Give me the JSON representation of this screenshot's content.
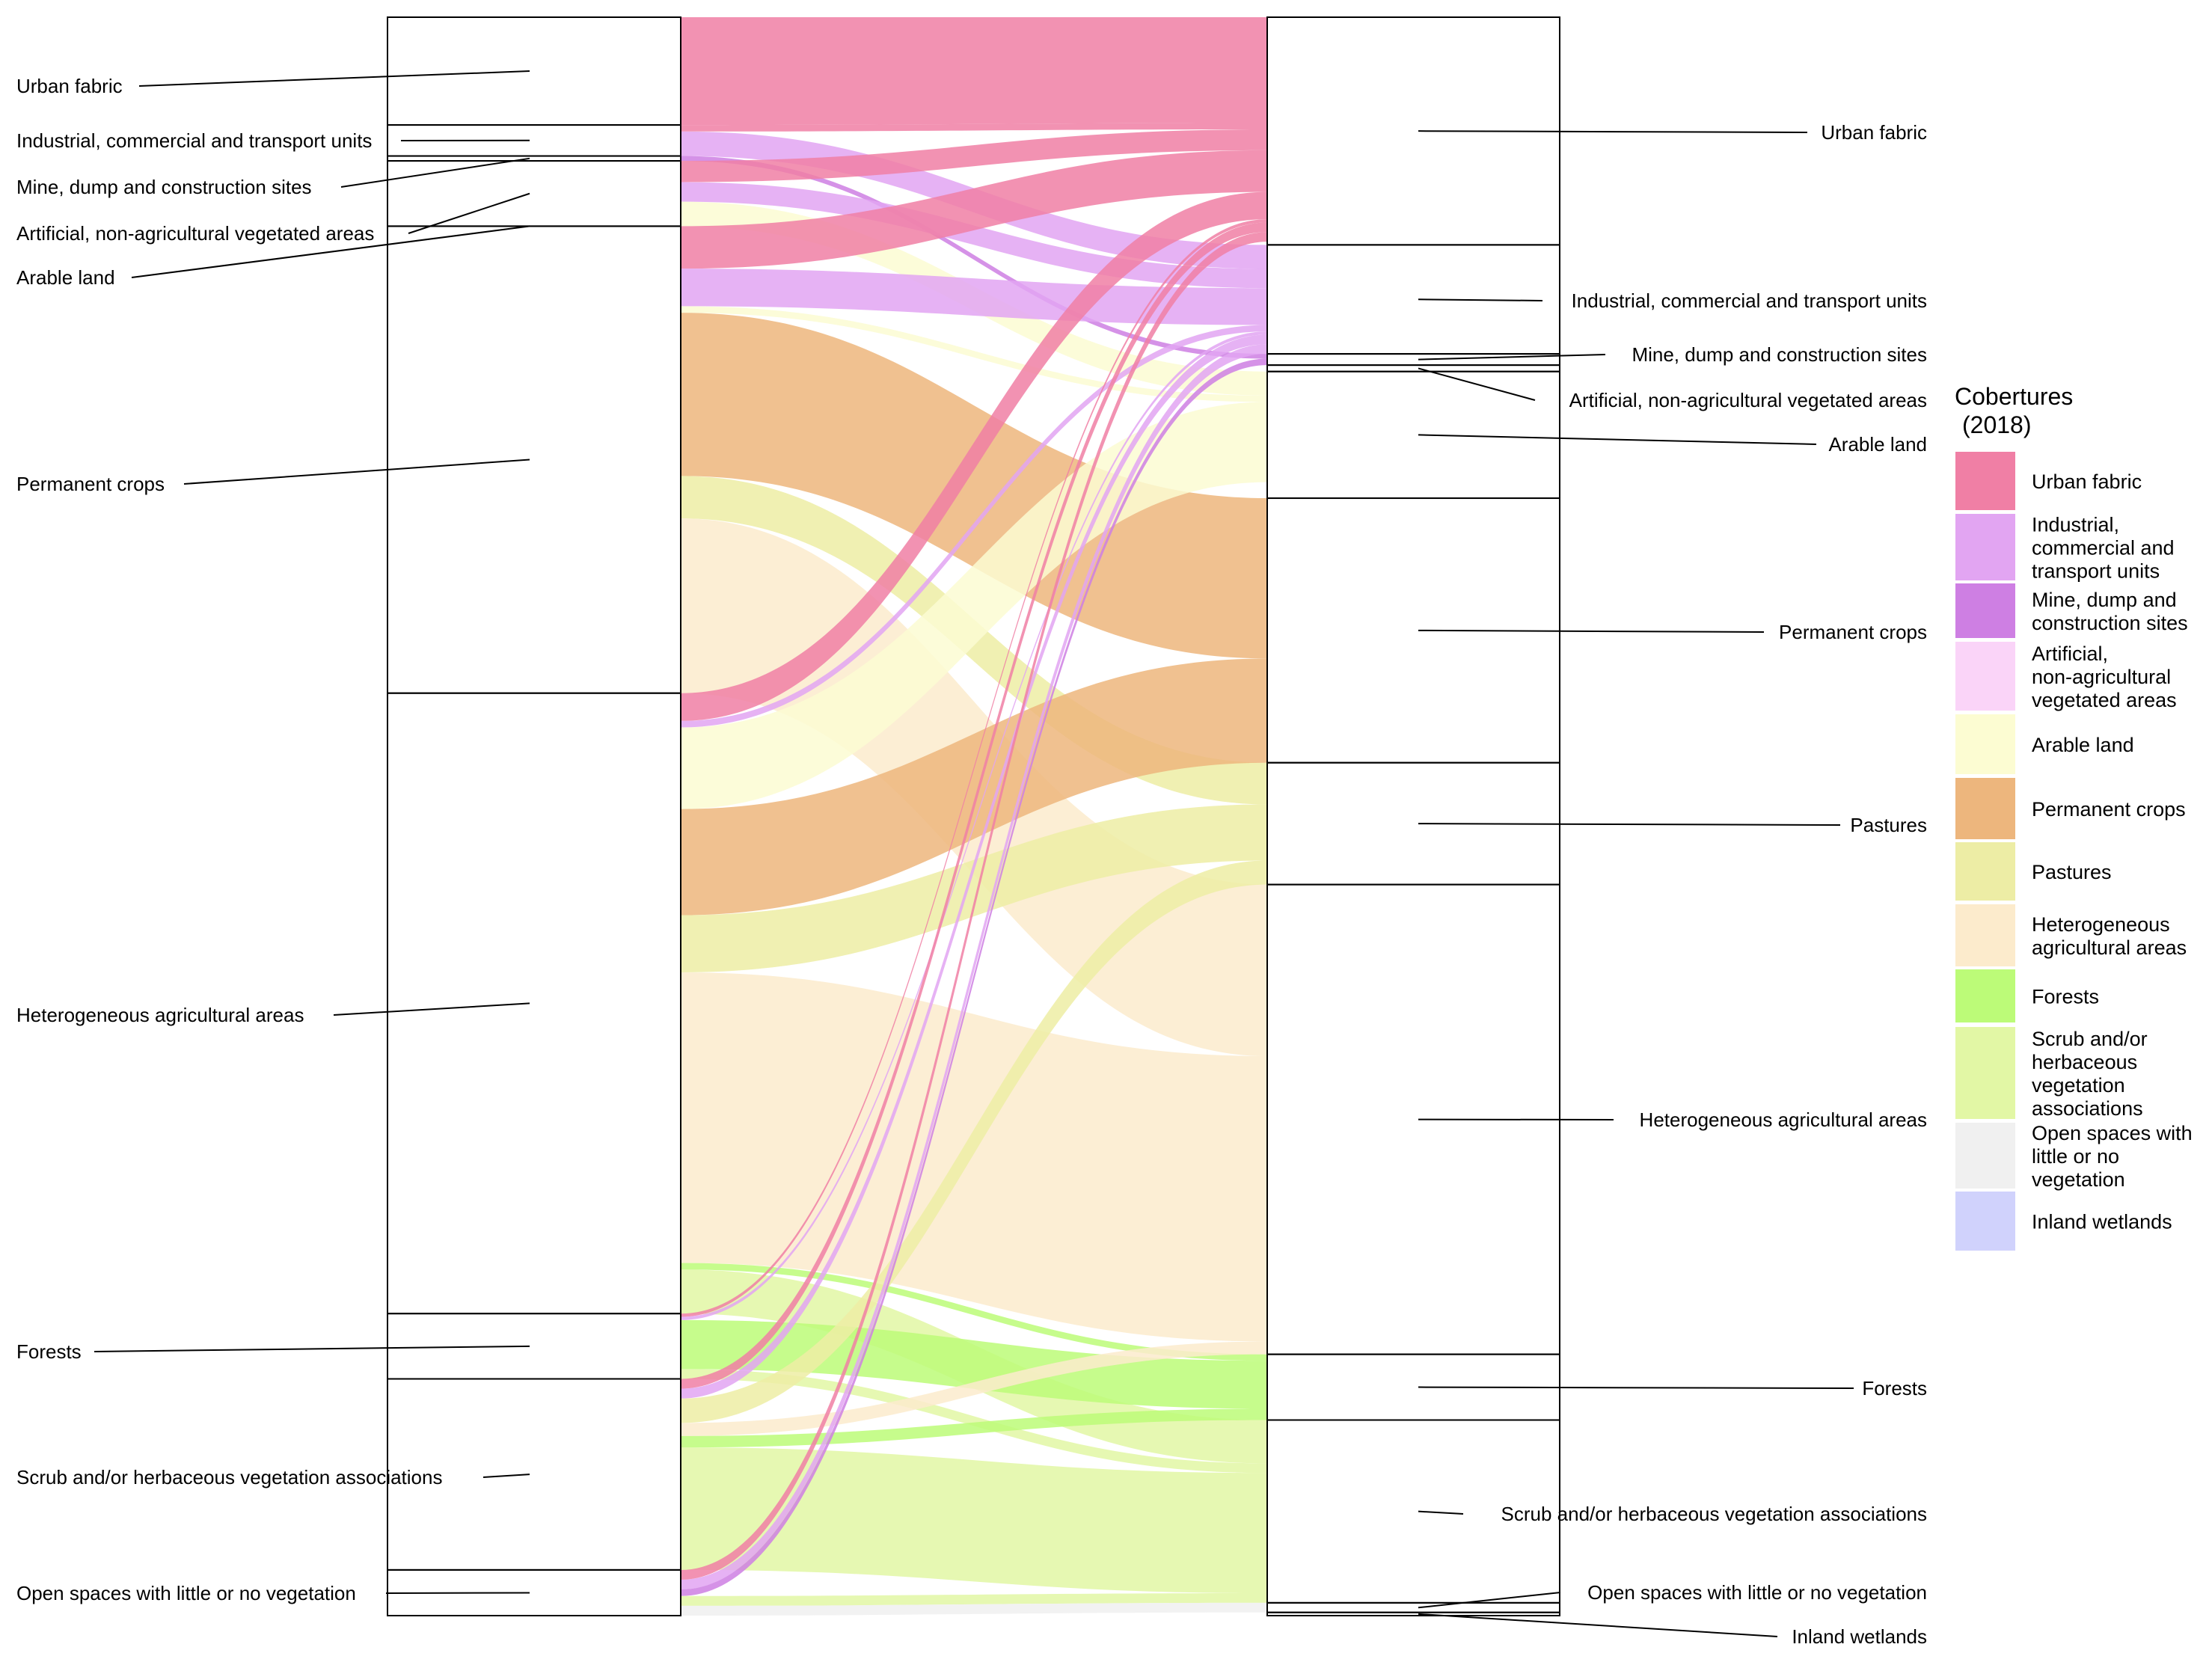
{
  "chart_data": {
    "type": "alluvial",
    "legend": {
      "title_line1": "Cobertures",
      "title_line2": "(2018)",
      "placement": "right",
      "entries": [
        {
          "lines": [
            "Urban fabric"
          ],
          "color": "#F07FA5"
        },
        {
          "lines": [
            "Industrial,",
            "commercial and",
            "transport units"
          ],
          "color": "#E2A5F2"
        },
        {
          "lines": [
            "Mine, dump and",
            "construction sites"
          ],
          "color": "#CE7FE3"
        },
        {
          "lines": [
            "Artificial,",
            "non-agricultural",
            "vegetated areas"
          ],
          "color": "#FAD4F8"
        },
        {
          "lines": [
            "Arable land"
          ],
          "color": "#FCFCD2"
        },
        {
          "lines": [
            "Permanent crops"
          ],
          "color": "#EDB67D"
        },
        {
          "lines": [
            "Pastures"
          ],
          "color": "#EDEDA5"
        },
        {
          "lines": [
            "Heterogeneous",
            "agricultural areas"
          ],
          "color": "#FCEBCC"
        },
        {
          "lines": [
            "Forests"
          ],
          "color": "#BCFB78"
        },
        {
          "lines": [
            "Scrub and/or",
            "herbaceous",
            "vegetation",
            "associations"
          ],
          "color": "#E2F7A5"
        },
        {
          "lines": [
            "Open spaces with",
            "little or no",
            "vegetation"
          ],
          "color": "#F0F0F0"
        },
        {
          "lines": [
            "Inland wetlands"
          ],
          "color": "#D0D2FC"
        }
      ]
    },
    "left_axis": {
      "categories": [
        {
          "label": "Urban fabric",
          "share": 6.6
        },
        {
          "label": "Industrial, commercial and transport units",
          "share": 1.9
        },
        {
          "label": "Mine, dump and construction sites",
          "share": 0.3
        },
        {
          "label": "Artificial, non-agricultural vegetated areas",
          "share": 4.0
        },
        {
          "label": "Arable land",
          "share": 0.0
        },
        {
          "label": "Permanent crops",
          "share": 28.6
        },
        {
          "label": "Heterogeneous agricultural areas",
          "share": 38.0
        },
        {
          "label": "Forests",
          "share": 4.0
        },
        {
          "label": "Scrub and/or herbaceous vegetation associations",
          "share": 11.7
        },
        {
          "label": "Open spaces with little or no vegetation",
          "share": 2.8
        }
      ]
    },
    "right_axis": {
      "categories": [
        {
          "label": "Urban fabric",
          "share": 14.2
        },
        {
          "label": "Industrial, commercial and transport units",
          "share": 6.8
        },
        {
          "label": "Mine, dump and construction sites",
          "share": 0.7
        },
        {
          "label": "Artificial, non-agricultural vegetated areas",
          "share": 0.4
        },
        {
          "label": "Arable land",
          "share": 7.9
        },
        {
          "label": "Permanent crops",
          "share": 16.5
        },
        {
          "label": "Pastures",
          "share": 7.6
        },
        {
          "label": "Heterogeneous agricultural areas",
          "share": 29.3
        },
        {
          "label": "Forests",
          "share": 4.1
        },
        {
          "label": "Scrub and/or herbaceous vegetation associations",
          "share": 11.4
        },
        {
          "label": "Open spaces with little or no vegetation",
          "share": 0.6
        },
        {
          "label": "Inland wetlands",
          "share": 0.2
        }
      ]
    },
    "flows": [
      {
        "from": "Urban fabric",
        "to": "Urban fabric",
        "value": 6.6
      },
      {
        "from": "Industrial, commercial and transport units",
        "to": "Industrial, commercial and transport units",
        "value": 1.5
      },
      {
        "from": "Industrial, commercial and transport units",
        "to": "Urban fabric",
        "value": 0.4
      },
      {
        "from": "Mine, dump and construction sites",
        "to": "Mine, dump and construction sites",
        "value": 0.3
      },
      {
        "from": "Artificial, non-agricultural vegetated areas",
        "to": "Urban fabric",
        "value": 1.3
      },
      {
        "from": "Artificial, non-agricultural vegetated areas",
        "to": "Industrial, commercial and transport units",
        "value": 1.2
      },
      {
        "from": "Artificial, non-agricultural vegetated areas",
        "to": "Arable land",
        "value": 1.5
      },
      {
        "from": "Permanent crops",
        "to": "Arable land",
        "value": 0.4
      },
      {
        "from": "Permanent crops",
        "to": "Permanent crops",
        "value": 10.0
      },
      {
        "from": "Permanent crops",
        "to": "Pastures",
        "value": 2.6
      },
      {
        "from": "Permanent crops",
        "to": "Heterogeneous agricultural areas",
        "value": 10.7
      },
      {
        "from": "Permanent crops",
        "to": "Urban fabric",
        "value": 2.6
      },
      {
        "from": "Permanent crops",
        "to": "Industrial, commercial and transport units",
        "value": 2.3
      },
      {
        "from": "Heterogeneous agricultural areas",
        "to": "Arable land",
        "value": 5.0
      },
      {
        "from": "Heterogeneous agricultural areas",
        "to": "Permanent crops",
        "value": 6.5
      },
      {
        "from": "Heterogeneous agricultural areas",
        "to": "Pastures",
        "value": 3.5
      },
      {
        "from": "Heterogeneous agricultural areas",
        "to": "Heterogeneous agricultural areas",
        "value": 17.8
      },
      {
        "from": "Heterogeneous agricultural areas",
        "to": "Scrub and/or herbaceous vegetation associations",
        "value": 2.7
      },
      {
        "from": "Heterogeneous agricultural areas",
        "to": "Forests",
        "value": 0.4
      },
      {
        "from": "Heterogeneous agricultural areas",
        "to": "Urban fabric",
        "value": 1.7
      },
      {
        "from": "Heterogeneous agricultural areas",
        "to": "Industrial, commercial and transport units",
        "value": 0.4
      },
      {
        "from": "Forests",
        "to": "Forests",
        "value": 3.0
      },
      {
        "from": "Forests",
        "to": "Scrub and/or herbaceous vegetation associations",
        "value": 0.6
      },
      {
        "from": "Forests",
        "to": "Urban fabric",
        "value": 0.2
      },
      {
        "from": "Forests",
        "to": "Industrial, commercial and transport units",
        "value": 0.2
      },
      {
        "from": "Scrub and/or herbaceous vegetation associations",
        "to": "Scrub and/or herbaceous vegetation associations",
        "value": 7.5
      },
      {
        "from": "Scrub and/or herbaceous vegetation associations",
        "to": "Heterogeneous agricultural areas",
        "value": 0.8
      },
      {
        "from": "Scrub and/or herbaceous vegetation associations",
        "to": "Forests",
        "value": 0.7
      },
      {
        "from": "Scrub and/or herbaceous vegetation associations",
        "to": "Pastures",
        "value": 1.5
      },
      {
        "from": "Scrub and/or herbaceous vegetation associations",
        "to": "Urban fabric",
        "value": 0.6
      },
      {
        "from": "Scrub and/or herbaceous vegetation associations",
        "to": "Industrial, commercial and transport units",
        "value": 0.6
      },
      {
        "from": "Open spaces with little or no vegetation",
        "to": "Scrub and/or herbaceous vegetation associations",
        "value": 0.6
      },
      {
        "from": "Open spaces with little or no vegetation",
        "to": "Open spaces with little or no vegetation",
        "value": 0.6
      },
      {
        "from": "Open spaces with little or no vegetation",
        "to": "Industrial, commercial and transport units",
        "value": 0.6
      },
      {
        "from": "Open spaces with little or no vegetation",
        "to": "Urban fabric",
        "value": 0.6
      },
      {
        "from": "Open spaces with little or no vegetation",
        "to": "Mine, dump and construction sites",
        "value": 0.4
      }
    ]
  }
}
